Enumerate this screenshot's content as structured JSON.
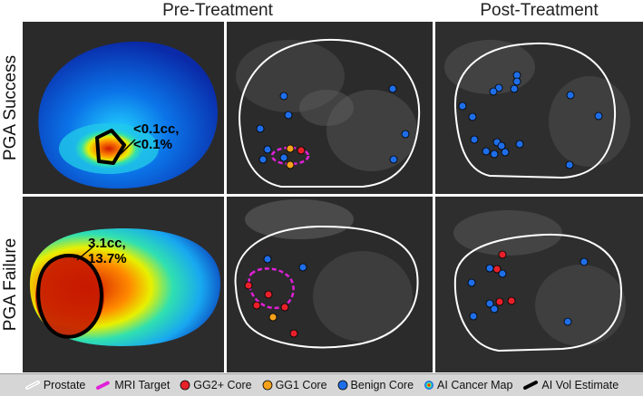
{
  "columns": {
    "pre": "Pre-Treatment",
    "post": "Post-Treatment"
  },
  "rows": {
    "success": "PGA  Success",
    "failure": "PGA  Failure"
  },
  "annotations": {
    "success": {
      "vol": "<0.1cc,",
      "pct": "<0.1%"
    },
    "failure": {
      "vol": "3.1cc,",
      "pct": "13.7%"
    }
  },
  "legend": [
    {
      "label": "Prostate",
      "icon": "prostate-outline-swatch"
    },
    {
      "label": "MRI Target",
      "icon": "mri-target-swatch"
    },
    {
      "label": "GG2+ Core",
      "icon": "red-dot"
    },
    {
      "label": "GG1 Core",
      "icon": "orange-dot"
    },
    {
      "label": "Benign Core",
      "icon": "blue-dot"
    },
    {
      "label": "AI Cancer Map",
      "icon": "colormap-dot"
    },
    {
      "label": "AI Vol Estimate",
      "icon": "black-outline-swatch"
    }
  ],
  "colors": {
    "gg2": "#e8202a",
    "gg1": "#f5a21a",
    "benign": "#1f6ee8",
    "target": "#e020d8",
    "outline": "#ffffff"
  }
}
